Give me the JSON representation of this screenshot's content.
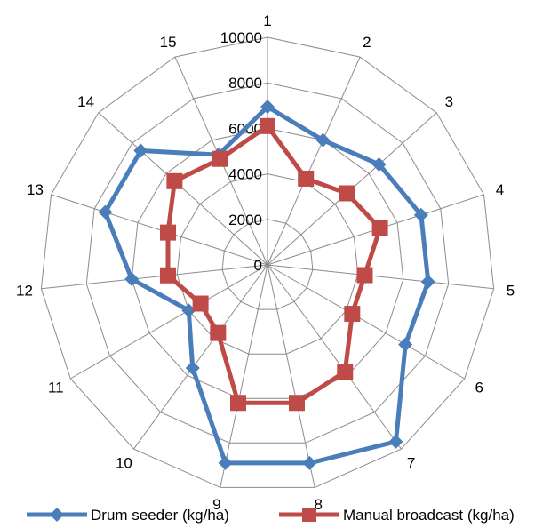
{
  "chart_data": {
    "type": "radar",
    "categories": [
      "1",
      "2",
      "3",
      "4",
      "5",
      "6",
      "7",
      "8",
      "9",
      "10",
      "11",
      "12",
      "13",
      "14",
      "15"
    ],
    "radial_axis": {
      "min": 0,
      "max": 10000,
      "step": 2000,
      "tick_labels": [
        "0",
        "2000",
        "4000",
        "6000",
        "8000",
        "10000"
      ]
    },
    "grid": true,
    "legend_position": "bottom",
    "series": [
      {
        "name": "Drum seeder (kg/ha)",
        "color": "#4a7ebb",
        "marker": "diamond",
        "values": [
          6950,
          6000,
          6600,
          7100,
          7100,
          7000,
          9600,
          8900,
          8900,
          5600,
          4000,
          6000,
          7500,
          7500,
          5300
        ]
      },
      {
        "name": "Manual broadcast (kg/ha)",
        "color": "#be4b48",
        "marker": "square",
        "values": [
          6100,
          4150,
          4700,
          5200,
          4300,
          4300,
          5800,
          6200,
          6200,
          3700,
          3400,
          4400,
          4600,
          5500,
          5100
        ]
      }
    ]
  }
}
